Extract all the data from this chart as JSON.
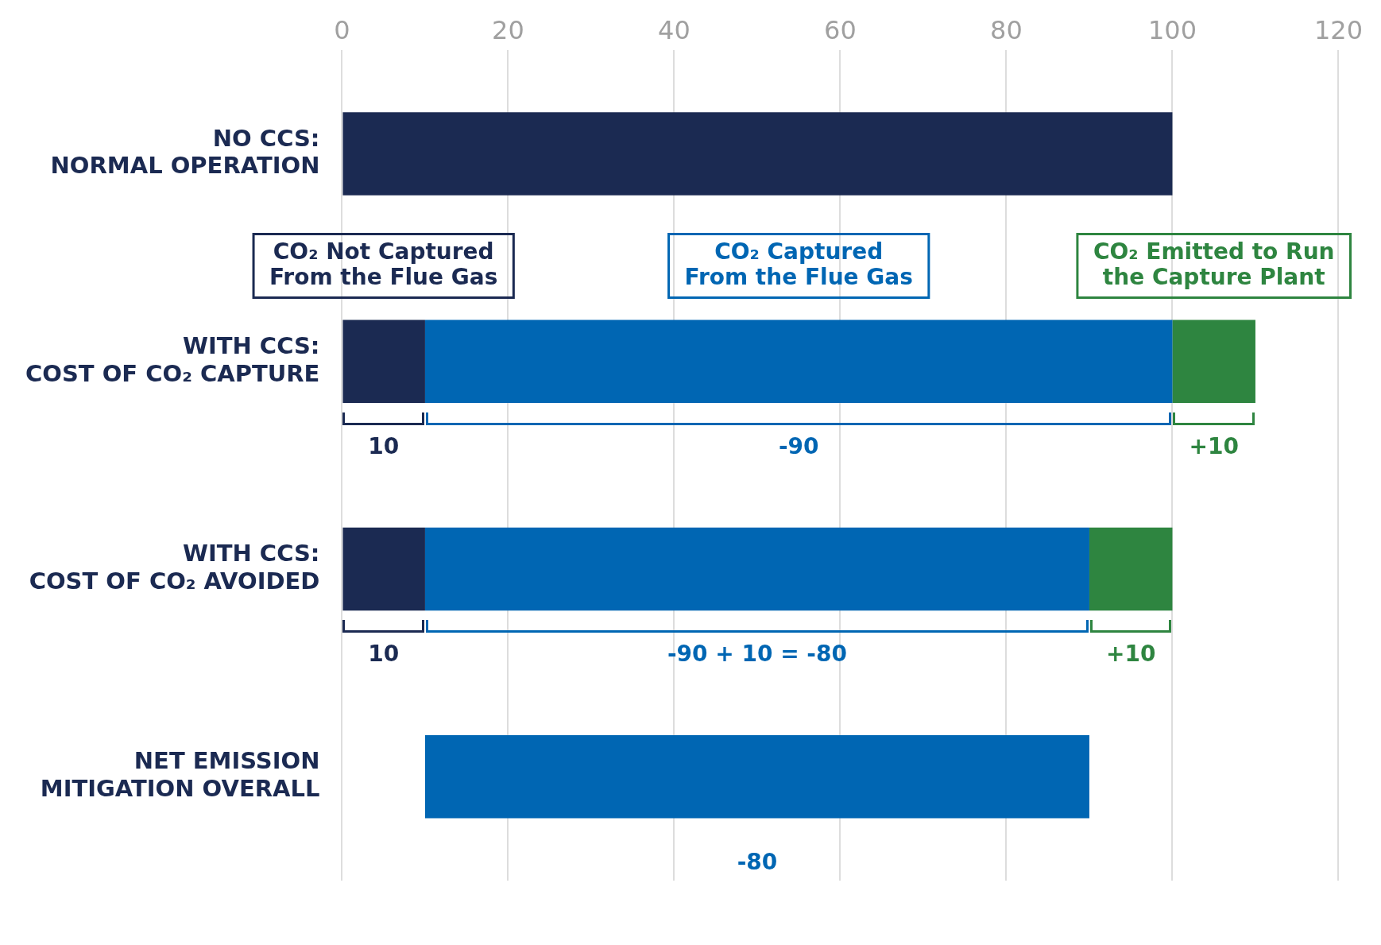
{
  "chart_data": {
    "type": "bar",
    "orientation": "horizontal",
    "categories": [
      "NO CCS: NORMAL OPERATION",
      "WITH CCS: COST OF CO₂ CAPTURE",
      "WITH CCS: COST OF CO₂ AVOIDED",
      "NET EMISSION MITIGATION OVERALL"
    ],
    "series": [
      {
        "name": "CO₂ Not Captured From the Flue Gas",
        "color": "#1b2a52",
        "values": [
          100,
          10,
          10,
          null
        ],
        "base": [
          0,
          0,
          0,
          null
        ]
      },
      {
        "name": "CO₂ Captured From the Flue Gas",
        "color": "#0066b3",
        "values": [
          null,
          90,
          80,
          80
        ],
        "base": [
          null,
          10,
          10,
          10
        ]
      },
      {
        "name": "CO₂ Emitted to Run the Capture Plant",
        "color": "#2e8540",
        "values": [
          null,
          10,
          null,
          null
        ],
        "base": [
          null,
          100,
          null,
          null
        ]
      },
      {
        "color": "#2e8540",
        "values": [
          null,
          null,
          10,
          null
        ],
        "base": [
          null,
          null,
          90,
          null
        ]
      }
    ],
    "xlim": [
      0,
      120
    ],
    "xticks": [
      0,
      20,
      40,
      60,
      80,
      100,
      120
    ],
    "grid": "x",
    "legend": false,
    "annotations": [
      "10",
      "-90",
      "+10",
      "10",
      "-90 + 10 = -80",
      "+10",
      "-80"
    ]
  }
}
